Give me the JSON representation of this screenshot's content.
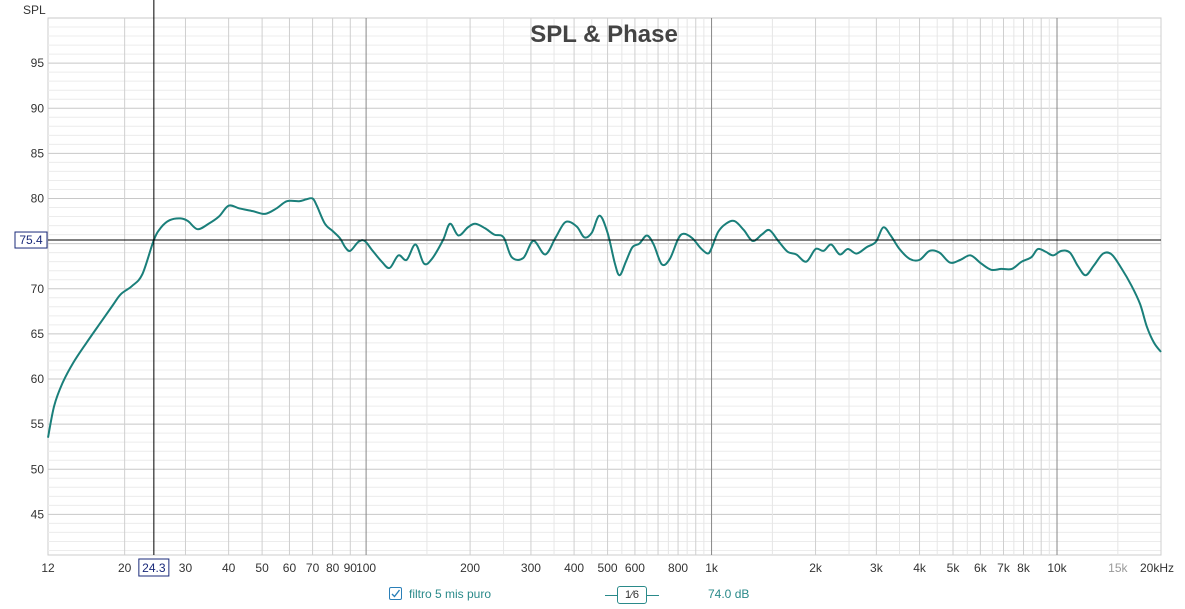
{
  "chart_data": {
    "type": "line",
    "title": "SPL & Phase",
    "ylabel": "SPL",
    "x_scale": "log",
    "xlim": [
      12,
      20000
    ],
    "ylim": [
      40.5,
      100
    ],
    "y_ticks": [
      45,
      50,
      55,
      60,
      65,
      70,
      75,
      80,
      85,
      90,
      95
    ],
    "x_ticks": [
      {
        "value": 12,
        "label": "12"
      },
      {
        "value": 20,
        "label": "20"
      },
      {
        "value": 30,
        "label": "30"
      },
      {
        "value": 40,
        "label": "40"
      },
      {
        "value": 50,
        "label": "50"
      },
      {
        "value": 60,
        "label": "60"
      },
      {
        "value": 70,
        "label": "70"
      },
      {
        "value": 80,
        "label": "80"
      },
      {
        "value": 90,
        "label": "90"
      },
      {
        "value": 100,
        "label": "100"
      },
      {
        "value": 200,
        "label": "200"
      },
      {
        "value": 300,
        "label": "300"
      },
      {
        "value": 400,
        "label": "400"
      },
      {
        "value": 500,
        "label": "500"
      },
      {
        "value": 600,
        "label": "600"
      },
      {
        "value": 800,
        "label": "800"
      },
      {
        "value": 1000,
        "label": "1k"
      },
      {
        "value": 2000,
        "label": "2k"
      },
      {
        "value": 3000,
        "label": "3k"
      },
      {
        "value": 4000,
        "label": "4k"
      },
      {
        "value": 5000,
        "label": "5k"
      },
      {
        "value": 6000,
        "label": "6k"
      },
      {
        "value": 7000,
        "label": "7k"
      },
      {
        "value": 8000,
        "label": "8k"
      },
      {
        "value": 10000,
        "label": "10k"
      },
      {
        "value": 15000,
        "label": "15k",
        "muted": true
      },
      {
        "value": 20000,
        "label": "20kHz"
      }
    ],
    "cursor": {
      "x": 24.3,
      "y": 75.4,
      "x_label": "24.3",
      "y_label": "75.4"
    },
    "grid": true,
    "series": [
      {
        "name": "filtro 5 mis puro",
        "color": "#1a7f7a",
        "points": [
          [
            12,
            53.5
          ],
          [
            12.5,
            57.0
          ],
          [
            13.2,
            59.5
          ],
          [
            14.2,
            61.8
          ],
          [
            15.5,
            64.0
          ],
          [
            17,
            66.2
          ],
          [
            18.5,
            68.2
          ],
          [
            19.5,
            69.4
          ],
          [
            21,
            70.3
          ],
          [
            22.5,
            71.6
          ],
          [
            24.3,
            75.4
          ],
          [
            25.5,
            76.8
          ],
          [
            27,
            77.6
          ],
          [
            29,
            77.8
          ],
          [
            30.5,
            77.5
          ],
          [
            32.5,
            76.6
          ],
          [
            35,
            77.2
          ],
          [
            37.5,
            78.0
          ],
          [
            40,
            79.2
          ],
          [
            43,
            78.9
          ],
          [
            47,
            78.6
          ],
          [
            51,
            78.3
          ],
          [
            55,
            78.9
          ],
          [
            59,
            79.7
          ],
          [
            64,
            79.7
          ],
          [
            67,
            79.9
          ],
          [
            70,
            80.0
          ],
          [
            72,
            79.2
          ],
          [
            76,
            77.2
          ],
          [
            80,
            76.4
          ],
          [
            84,
            75.6
          ],
          [
            87,
            74.6
          ],
          [
            90,
            74.2
          ],
          [
            95,
            75.2
          ],
          [
            99,
            75.3
          ],
          [
            104,
            74.3
          ],
          [
            111,
            73.0
          ],
          [
            117,
            72.3
          ],
          [
            124,
            73.7
          ],
          [
            131,
            73.2
          ],
          [
            139,
            74.9
          ],
          [
            147,
            72.8
          ],
          [
            155,
            73.3
          ],
          [
            167,
            75.4
          ],
          [
            175,
            77.2
          ],
          [
            185,
            75.9
          ],
          [
            197,
            76.8
          ],
          [
            207,
            77.2
          ],
          [
            221,
            76.7
          ],
          [
            235,
            76.0
          ],
          [
            250,
            75.7
          ],
          [
            264,
            73.5
          ],
          [
            285,
            73.4
          ],
          [
            305,
            75.3
          ],
          [
            330,
            73.8
          ],
          [
            354,
            75.7
          ],
          [
            378,
            77.4
          ],
          [
            407,
            76.9
          ],
          [
            428,
            75.7
          ],
          [
            450,
            76.2
          ],
          [
            474,
            78.1
          ],
          [
            500,
            76.2
          ],
          [
            525,
            72.8
          ],
          [
            542,
            71.5
          ],
          [
            565,
            73.0
          ],
          [
            590,
            74.6
          ],
          [
            618,
            75.0
          ],
          [
            650,
            75.9
          ],
          [
            680,
            74.9
          ],
          [
            718,
            72.7
          ],
          [
            757,
            73.3
          ],
          [
            800,
            75.5
          ],
          [
            830,
            76.1
          ],
          [
            880,
            75.6
          ],
          [
            930,
            74.5
          ],
          [
            975,
            73.9
          ],
          [
            1000,
            74.5
          ],
          [
            1045,
            76.3
          ],
          [
            1100,
            77.2
          ],
          [
            1165,
            77.5
          ],
          [
            1240,
            76.5
          ],
          [
            1315,
            75.3
          ],
          [
            1397,
            76.0
          ],
          [
            1470,
            76.5
          ],
          [
            1560,
            75.3
          ],
          [
            1660,
            74.1
          ],
          [
            1760,
            73.8
          ],
          [
            1880,
            73.0
          ],
          [
            2000,
            74.4
          ],
          [
            2110,
            74.2
          ],
          [
            2220,
            74.9
          ],
          [
            2350,
            73.8
          ],
          [
            2480,
            74.4
          ],
          [
            2630,
            73.9
          ],
          [
            2810,
            74.6
          ],
          [
            2990,
            75.2
          ],
          [
            3140,
            76.8
          ],
          [
            3300,
            75.9
          ],
          [
            3500,
            74.4
          ],
          [
            3750,
            73.3
          ],
          [
            4000,
            73.2
          ],
          [
            4280,
            74.2
          ],
          [
            4570,
            74.0
          ],
          [
            4900,
            72.9
          ],
          [
            5250,
            73.2
          ],
          [
            5620,
            73.7
          ],
          [
            6030,
            72.8
          ],
          [
            6450,
            72.1
          ],
          [
            6900,
            72.2
          ],
          [
            7400,
            72.2
          ],
          [
            7900,
            73.0
          ],
          [
            8430,
            73.5
          ],
          [
            8800,
            74.4
          ],
          [
            9270,
            74.1
          ],
          [
            9750,
            73.7
          ],
          [
            10300,
            74.2
          ],
          [
            10900,
            74.0
          ],
          [
            11500,
            72.5
          ],
          [
            12100,
            71.5
          ],
          [
            12800,
            72.6
          ],
          [
            13600,
            73.9
          ],
          [
            14400,
            73.8
          ],
          [
            15400,
            72.2
          ],
          [
            16400,
            70.4
          ],
          [
            17400,
            68.3
          ],
          [
            18200,
            65.8
          ],
          [
            19100,
            64.0
          ],
          [
            20000,
            63.0
          ]
        ]
      }
    ]
  },
  "legend": {
    "series_name": "filtro 5 mis puro",
    "smoothing_label": "1⁄6",
    "value_readout": "74.0 dB",
    "checked": true
  }
}
